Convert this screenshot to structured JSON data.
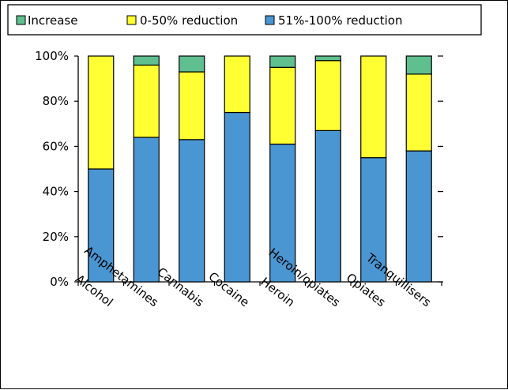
{
  "chart_data": {
    "type": "bar",
    "stacked": true,
    "categories": [
      "Alcohol",
      "Amphetamines",
      "Cannabis",
      "Cocaine",
      "Heroin",
      "Heroin/opiates",
      "Opiates",
      "Tranquillisers"
    ],
    "series": [
      {
        "name": "Increase",
        "color": "#5fbf8f",
        "values": [
          0,
          4,
          7,
          0,
          5,
          2,
          0,
          8
        ]
      },
      {
        "name": "0-50% reduction",
        "color": "#ffff33",
        "values": [
          50,
          32,
          30,
          25,
          34,
          31,
          45,
          34
        ]
      },
      {
        "name": "51%-100% reduction",
        "color": "#4a96d2",
        "values": [
          50,
          64,
          63,
          75,
          61,
          67,
          55,
          58
        ]
      }
    ],
    "stack_order_bottom_to_top": [
      "51%-100% reduction",
      "0-50% reduction",
      "Increase"
    ],
    "ylim": [
      0,
      100
    ],
    "yticks": [
      "0%",
      "20%",
      "40%",
      "60%",
      "80%",
      "100%"
    ],
    "grid": false,
    "legend_position": "top"
  }
}
